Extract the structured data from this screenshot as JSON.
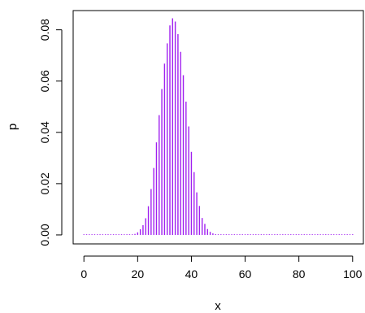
{
  "chart_data": {
    "type": "bar",
    "xlabel": "x",
    "ylabel": "p",
    "xlim": [
      -4,
      104
    ],
    "ylim": [
      -0.0035,
      0.0875
    ],
    "x_ticks": [
      0,
      20,
      40,
      60,
      80,
      100
    ],
    "y_ticks": [
      0.0,
      0.02,
      0.04,
      0.06,
      0.08
    ],
    "x_tick_labels": [
      "0",
      "20",
      "40",
      "60",
      "80",
      "100"
    ],
    "y_tick_labels": [
      "0.00",
      "0.02",
      "0.04",
      "0.06",
      "0.08"
    ],
    "bar_color": "#a020f0",
    "grid": false,
    "x": [
      0,
      1,
      2,
      3,
      4,
      5,
      6,
      7,
      8,
      9,
      10,
      11,
      12,
      13,
      14,
      15,
      16,
      17,
      18,
      19,
      20,
      21,
      22,
      23,
      24,
      25,
      26,
      27,
      28,
      29,
      30,
      31,
      32,
      33,
      34,
      35,
      36,
      37,
      38,
      39,
      40,
      41,
      42,
      43,
      44,
      45,
      46,
      47,
      48,
      49,
      50,
      51,
      52,
      53,
      54,
      55,
      56,
      57,
      58,
      59,
      60,
      61,
      62,
      63,
      64,
      65,
      66,
      67,
      68,
      69,
      70,
      71,
      72,
      73,
      74,
      75,
      76,
      77,
      78,
      79,
      80,
      81,
      82,
      83,
      84,
      85,
      86,
      87,
      88,
      89,
      90,
      91,
      92,
      93,
      94,
      95,
      96,
      97,
      98,
      99,
      100
    ],
    "values": [
      0,
      0,
      0,
      0,
      0,
      0,
      0,
      0,
      0,
      0,
      0,
      0,
      0,
      0,
      0,
      0,
      0,
      0.0001,
      0.0002,
      0.0004,
      0.001,
      0.0022,
      0.0038,
      0.0065,
      0.0112,
      0.0179,
      0.0261,
      0.0361,
      0.0467,
      0.0569,
      0.0668,
      0.0747,
      0.0817,
      0.0845,
      0.0832,
      0.0783,
      0.0714,
      0.0623,
      0.052,
      0.0423,
      0.0324,
      0.0245,
      0.0166,
      0.0113,
      0.0066,
      0.0043,
      0.0023,
      0.0012,
      0.0006,
      0.0003,
      0.0002,
      0.0001,
      0,
      0,
      0,
      0,
      0,
      0,
      0,
      0,
      0,
      0,
      0,
      0,
      0,
      0,
      0,
      0,
      0,
      0,
      0,
      0,
      0,
      0,
      0,
      0,
      0,
      0,
      0,
      0,
      0,
      0,
      0,
      0,
      0,
      0,
      0,
      0,
      0,
      0,
      0,
      0,
      0,
      0,
      0,
      0,
      0,
      0,
      0,
      0,
      0
    ]
  }
}
